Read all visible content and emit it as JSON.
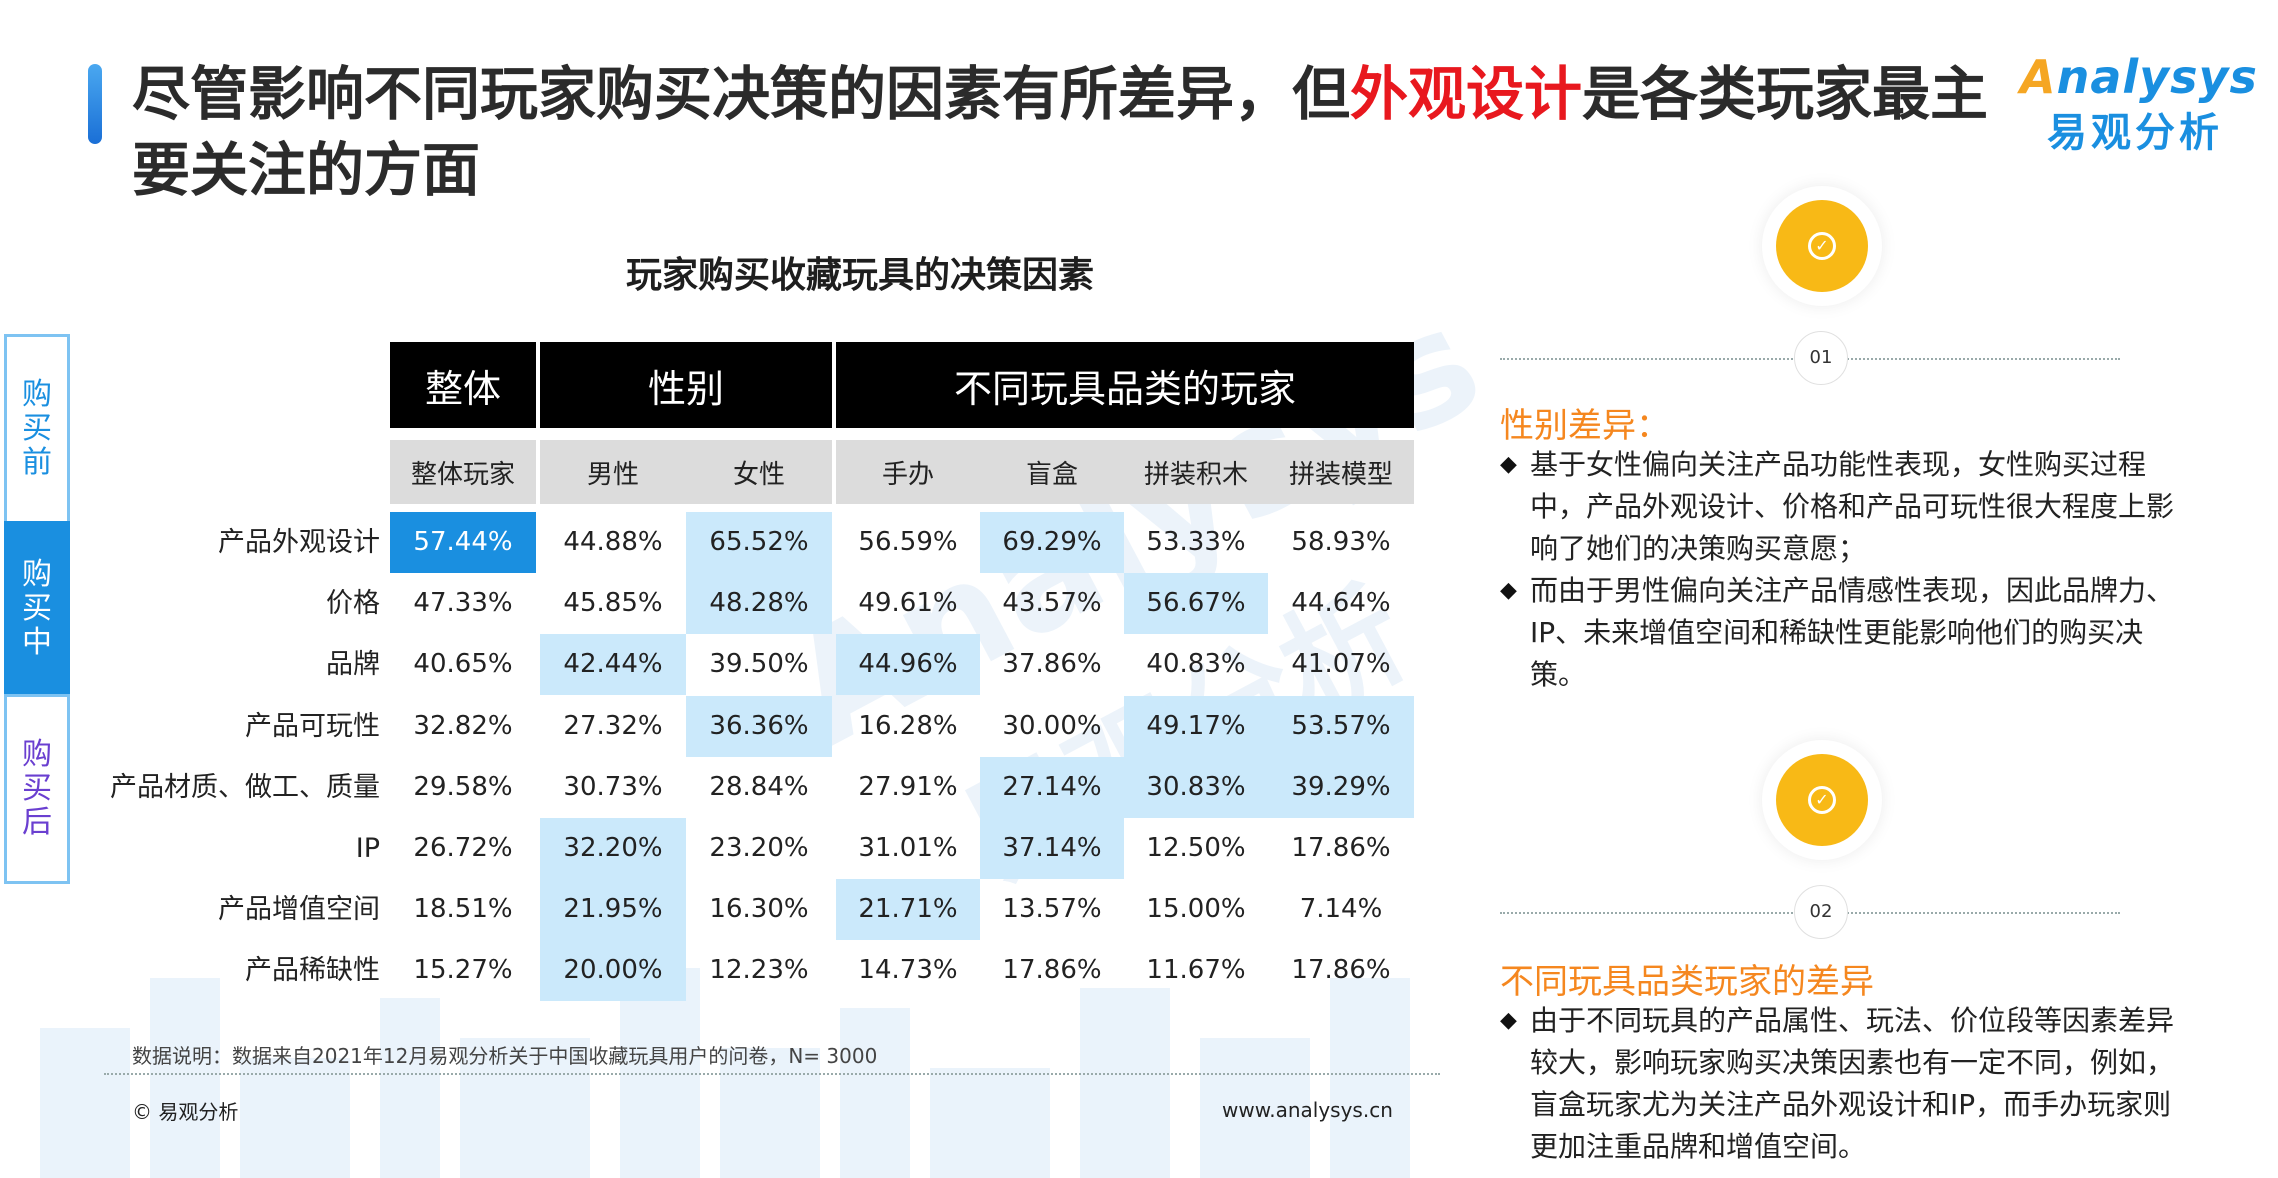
{
  "header": {
    "title_pre": "尽管影响不同玩家购买决策的因素有所差异，但",
    "title_highlight": "外观设计",
    "title_post": "是各类玩家最主要关注的方面"
  },
  "logo": {
    "brand_a": "A",
    "brand_rest": "nalysys",
    "brand_cn": "易观分析"
  },
  "side_nav": [
    "购买前",
    "购买中",
    "购买后"
  ],
  "watermark": {
    "line1": "Analysys",
    "line2": "易观分析"
  },
  "chart_title": "玩家购买收藏玩具的决策因素",
  "table": {
    "groups": [
      "整体",
      "性别",
      "不同玩具品类的玩家"
    ],
    "columns": [
      "整体玩家",
      "男性",
      "女性",
      "手办",
      "盲盒",
      "拼装积木",
      "拼装模型"
    ],
    "rows": [
      {
        "label": "产品外观设计",
        "values": [
          "57.44%",
          "44.88%",
          "65.52%",
          "56.59%",
          "69.29%",
          "53.33%",
          "58.93%"
        ]
      },
      {
        "label": "价格",
        "values": [
          "47.33%",
          "45.85%",
          "48.28%",
          "49.61%",
          "43.57%",
          "56.67%",
          "44.64%"
        ]
      },
      {
        "label": "品牌",
        "values": [
          "40.65%",
          "42.44%",
          "39.50%",
          "44.96%",
          "37.86%",
          "40.83%",
          "41.07%"
        ]
      },
      {
        "label": "产品可玩性",
        "values": [
          "32.82%",
          "27.32%",
          "36.36%",
          "16.28%",
          "30.00%",
          "49.17%",
          "53.57%"
        ]
      },
      {
        "label": "产品材质、做工、质量",
        "values": [
          "29.58%",
          "30.73%",
          "28.84%",
          "27.91%",
          "27.14%",
          "30.83%",
          "39.29%"
        ]
      },
      {
        "label": "IP",
        "values": [
          "26.72%",
          "32.20%",
          "23.20%",
          "31.01%",
          "37.14%",
          "12.50%",
          "17.86%"
        ]
      },
      {
        "label": "产品增值空间",
        "values": [
          "18.51%",
          "21.95%",
          "16.30%",
          "21.71%",
          "13.57%",
          "15.00%",
          "7.14%"
        ]
      },
      {
        "label": "产品稀缺性",
        "values": [
          "15.27%",
          "20.00%",
          "12.23%",
          "14.73%",
          "17.86%",
          "11.67%",
          "17.86%"
        ]
      }
    ]
  },
  "footnote": "数据说明：数据来自2021年12月易观分析关于中国收藏玩具用户的问卷，N= 3000",
  "copyright": "© 易观分析",
  "website": "www.analysys.cn",
  "sections": [
    {
      "num": "01",
      "title": "性别差异：",
      "bullets": [
        "基于女性偏向关注产品功能性表现，女性购买过程中，产品外观设计、价格和产品可玩性很大程度上影响了她们的决策购买意愿；",
        "而由于男性偏向关注产品情感性表现，因此品牌力、IP、未来增值空间和稀缺性更能影响他们的购买决策。"
      ]
    },
    {
      "num": "02",
      "title": "不同玩具品类玩家的差异",
      "bullets": [
        "由于不同玩具的产品属性、玩法、价位段等因素差异较大，影响玩家购买决策因素也有一定不同，例如，盲盒玩家尤为关注产品外观设计和IP，而手办玩家则更加注重品牌和增值空间。"
      ]
    }
  ],
  "icons": {
    "check": "check-icon",
    "bullet": "diamond-icon"
  },
  "colors": {
    "accent": "#1a8fe0",
    "highlight": "#e8181e",
    "orange": "#f5871f",
    "cell_highlight": "#cbe9fb"
  }
}
